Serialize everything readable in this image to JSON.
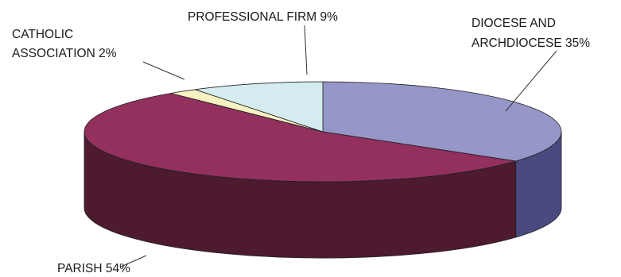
{
  "chart_data": {
    "type": "pie",
    "title": "",
    "slices": [
      {
        "name": "DIOCESE AND ARCHDIOCESE",
        "value": 35,
        "label_lines": [
          "DIOCESE AND",
          "ARCHDIOCESE 35%"
        ],
        "top_color": "#9696c8",
        "side_color": "#4a4a80"
      },
      {
        "name": "PARISH",
        "value": 54,
        "label_lines": [
          "PARISH 54%"
        ],
        "top_color": "#93305e",
        "side_color": "#4d1a30"
      },
      {
        "name": "CATHOLIC ASSOCIATION",
        "value": 2,
        "label_lines": [
          "CATHOLIC",
          "ASSOCIATION 2%"
        ],
        "top_color": "#f6f2c2",
        "side_color": "#b0ac80"
      },
      {
        "name": "PROFESSIONAL FIRM",
        "value": 9,
        "label_lines": [
          "PROFESSIONAL FIRM 9%"
        ],
        "top_color": "#d4ecf0",
        "side_color": "#8aa8ae"
      }
    ],
    "style": "3d",
    "legend": "none"
  }
}
